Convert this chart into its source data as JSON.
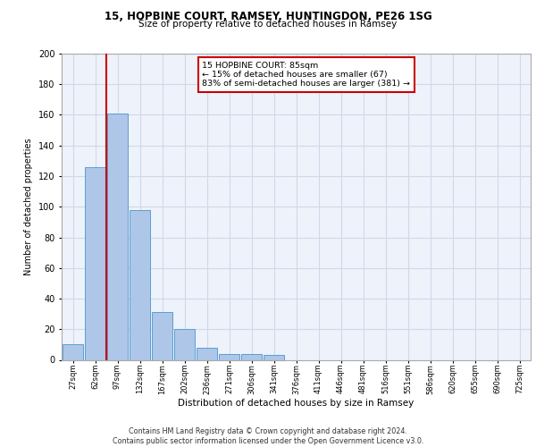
{
  "title1": "15, HOPBINE COURT, RAMSEY, HUNTINGDON, PE26 1SG",
  "title2": "Size of property relative to detached houses in Ramsey",
  "xlabel": "Distribution of detached houses by size in Ramsey",
  "ylabel": "Number of detached properties",
  "bar_labels": [
    "27sqm",
    "62sqm",
    "97sqm",
    "132sqm",
    "167sqm",
    "202sqm",
    "236sqm",
    "271sqm",
    "306sqm",
    "341sqm",
    "376sqm",
    "411sqm",
    "446sqm",
    "481sqm",
    "516sqm",
    "551sqm",
    "586sqm",
    "620sqm",
    "655sqm",
    "690sqm",
    "725sqm"
  ],
  "bar_values": [
    10,
    126,
    161,
    98,
    31,
    20,
    8,
    4,
    4,
    3,
    0,
    0,
    0,
    0,
    0,
    0,
    0,
    0,
    0,
    0,
    0
  ],
  "bar_color": "#aec6e8",
  "bar_edge_color": "#5a9fd4",
  "grid_color": "#d0d8e8",
  "background_color": "#eef2fa",
  "vline_color": "#cc0000",
  "annotation_text": "15 HOPBINE COURT: 85sqm\n← 15% of detached houses are smaller (67)\n83% of semi-detached houses are larger (381) →",
  "annotation_box_color": "#ffffff",
  "annotation_box_edge": "#cc0000",
  "ylim": [
    0,
    200
  ],
  "yticks": [
    0,
    20,
    40,
    60,
    80,
    100,
    120,
    140,
    160,
    180,
    200
  ],
  "footer": "Contains HM Land Registry data © Crown copyright and database right 2024.\nContains public sector information licensed under the Open Government Licence v3.0."
}
